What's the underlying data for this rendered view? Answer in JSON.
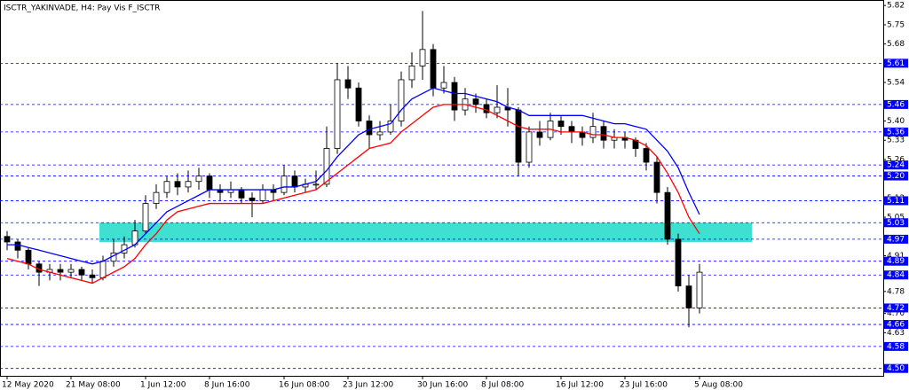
{
  "chart_data": {
    "type": "candlestick",
    "title": "ISCTR_YAKINVADE, H4:  Pay Vis F_ISCTR",
    "categories": [
      "12 May 2020",
      null,
      null,
      null,
      null,
      null,
      "21 May 08:00",
      null,
      null,
      null,
      null,
      null,
      null,
      "1 Jun 12:00",
      null,
      null,
      null,
      null,
      null,
      "8 Jun 16:00",
      null,
      null,
      null,
      null,
      null,
      null,
      "16 Jun 08:00",
      null,
      null,
      null,
      null,
      null,
      "23 Jun 12:00",
      null,
      null,
      null,
      null,
      null,
      null,
      "30 Jun 16:00",
      null,
      null,
      null,
      null,
      null,
      "8 Jul 08:00",
      null,
      null,
      null,
      null,
      null,
      null,
      "16 Jul 12:00",
      null,
      null,
      null,
      null,
      null,
      "23 Jul 16:00",
      null,
      null,
      null,
      null,
      null,
      null,
      "5 Aug 08:00"
    ],
    "candles": [
      [
        4.98,
        5.0,
        4.93,
        4.96
      ],
      [
        4.96,
        4.97,
        4.9,
        4.93
      ],
      [
        4.93,
        4.94,
        4.86,
        4.88
      ],
      [
        4.88,
        4.89,
        4.8,
        4.85
      ],
      [
        4.85,
        4.88,
        4.82,
        4.86
      ],
      [
        4.86,
        4.88,
        4.82,
        4.85
      ],
      [
        4.85,
        4.88,
        4.83,
        4.86
      ],
      [
        4.86,
        4.87,
        4.82,
        4.84
      ],
      [
        4.84,
        4.86,
        4.81,
        4.83
      ],
      [
        4.83,
        4.91,
        4.82,
        4.89
      ],
      [
        4.89,
        4.97,
        4.87,
        4.92
      ],
      [
        4.92,
        4.98,
        4.9,
        4.95
      ],
      [
        4.95,
        5.04,
        4.94,
        5.0
      ],
      [
        5.0,
        5.13,
        4.99,
        5.1
      ],
      [
        5.1,
        5.17,
        5.08,
        5.14
      ],
      [
        5.14,
        5.2,
        5.12,
        5.18
      ],
      [
        5.18,
        5.21,
        5.13,
        5.16
      ],
      [
        5.16,
        5.22,
        5.14,
        5.18
      ],
      [
        5.18,
        5.23,
        5.15,
        5.2
      ],
      [
        5.2,
        5.21,
        5.12,
        5.15
      ],
      [
        5.15,
        5.17,
        5.11,
        5.14
      ],
      [
        5.14,
        5.18,
        5.12,
        5.15
      ],
      [
        5.15,
        5.16,
        5.1,
        5.12
      ],
      [
        5.12,
        5.14,
        5.05,
        5.11
      ],
      [
        5.11,
        5.17,
        5.1,
        5.15
      ],
      [
        5.15,
        5.17,
        5.11,
        5.14
      ],
      [
        5.14,
        5.24,
        5.13,
        5.2
      ],
      [
        5.2,
        5.22,
        5.14,
        5.16
      ],
      [
        5.16,
        5.19,
        5.14,
        5.17
      ],
      [
        5.17,
        5.22,
        5.15,
        5.17
      ],
      [
        5.17,
        5.38,
        5.16,
        5.3
      ],
      [
        5.3,
        5.61,
        5.28,
        5.55
      ],
      [
        5.55,
        5.6,
        5.48,
        5.52
      ],
      [
        5.52,
        5.54,
        5.38,
        5.4
      ],
      [
        5.4,
        5.42,
        5.3,
        5.35
      ],
      [
        5.35,
        5.4,
        5.33,
        5.36
      ],
      [
        5.36,
        5.46,
        5.35,
        5.4
      ],
      [
        5.4,
        5.58,
        5.38,
        5.55
      ],
      [
        5.55,
        5.65,
        5.52,
        5.6
      ],
      [
        5.6,
        5.8,
        5.55,
        5.66
      ],
      [
        5.66,
        5.68,
        5.49,
        5.52
      ],
      [
        5.52,
        5.6,
        5.5,
        5.54
      ],
      [
        5.54,
        5.56,
        5.4,
        5.44
      ],
      [
        5.44,
        5.52,
        5.42,
        5.48
      ],
      [
        5.48,
        5.5,
        5.43,
        5.46
      ],
      [
        5.46,
        5.48,
        5.41,
        5.43
      ],
      [
        5.43,
        5.53,
        5.41,
        5.45
      ],
      [
        5.45,
        5.52,
        5.38,
        5.44
      ],
      [
        5.44,
        5.45,
        5.2,
        5.25
      ],
      [
        5.25,
        5.38,
        5.23,
        5.36
      ],
      [
        5.36,
        5.4,
        5.31,
        5.34
      ],
      [
        5.34,
        5.43,
        5.33,
        5.4
      ],
      [
        5.4,
        5.42,
        5.35,
        5.38
      ],
      [
        5.38,
        5.4,
        5.32,
        5.36
      ],
      [
        5.36,
        5.38,
        5.31,
        5.34
      ],
      [
        5.34,
        5.43,
        5.32,
        5.38
      ],
      [
        5.38,
        5.4,
        5.3,
        5.33
      ],
      [
        5.33,
        5.37,
        5.3,
        5.34
      ],
      [
        5.34,
        5.36,
        5.3,
        5.33
      ],
      [
        5.33,
        5.34,
        5.27,
        5.3
      ],
      [
        5.3,
        5.32,
        5.22,
        5.25
      ],
      [
        5.25,
        5.27,
        5.1,
        5.14
      ],
      [
        5.14,
        5.16,
        4.95,
        4.97
      ],
      [
        4.97,
        4.99,
        4.78,
        4.8
      ],
      [
        4.8,
        4.84,
        4.65,
        4.72
      ],
      [
        4.72,
        4.88,
        4.7,
        4.85
      ]
    ],
    "up_color": "#ffffff",
    "down_color": "#000000",
    "series": [
      {
        "color": "#0000ff",
        "values": [
          4.95,
          4.95,
          4.94,
          4.93,
          4.92,
          4.91,
          4.9,
          4.89,
          4.88,
          4.89,
          4.91,
          4.93,
          4.95,
          4.99,
          5.03,
          5.07,
          5.09,
          5.11,
          5.13,
          5.15,
          5.15,
          5.15,
          5.15,
          5.15,
          5.15,
          5.15,
          5.16,
          5.16,
          5.17,
          5.18,
          5.22,
          5.27,
          5.31,
          5.35,
          5.37,
          5.38,
          5.39,
          5.44,
          5.48,
          5.5,
          5.52,
          5.51,
          5.5,
          5.5,
          5.49,
          5.48,
          5.47,
          5.45,
          5.44,
          5.42,
          5.42,
          5.42,
          5.42,
          5.42,
          5.42,
          5.41,
          5.4,
          5.39,
          5.39,
          5.38,
          5.37,
          5.33,
          5.29,
          5.23,
          5.14,
          5.06
        ]
      },
      {
        "color": "#ff0000",
        "values": [
          4.9,
          4.89,
          4.88,
          4.86,
          4.85,
          4.84,
          4.83,
          4.82,
          4.81,
          4.83,
          4.85,
          4.87,
          4.9,
          4.95,
          4.99,
          5.04,
          5.07,
          5.08,
          5.09,
          5.1,
          5.1,
          5.1,
          5.1,
          5.1,
          5.1,
          5.11,
          5.12,
          5.13,
          5.14,
          5.15,
          5.18,
          5.21,
          5.24,
          5.27,
          5.3,
          5.31,
          5.32,
          5.36,
          5.39,
          5.42,
          5.45,
          5.46,
          5.46,
          5.46,
          5.45,
          5.44,
          5.42,
          5.4,
          5.38,
          5.37,
          5.37,
          5.37,
          5.36,
          5.36,
          5.36,
          5.35,
          5.35,
          5.34,
          5.34,
          5.33,
          5.31,
          5.27,
          5.21,
          5.14,
          5.05,
          4.99
        ]
      }
    ],
    "zone": {
      "low": 4.96,
      "high": 5.03,
      "color": "#40e0d0"
    },
    "ylim": [
      4.47,
      5.84
    ],
    "yticks": [
      5.82,
      5.75,
      5.68,
      5.54,
      {
        "value": 5.4,
        "label": "5.40"
      },
      5.33,
      5.26,
      5.12,
      5.05,
      4.91,
      4.78,
      {
        "value": 4.7,
        "label": "4.70"
      },
      4.63
    ],
    "levels": [
      5.61,
      5.46,
      5.36,
      5.24,
      {
        "value": 5.2,
        "label": "5.20"
      },
      5.11,
      5.03,
      4.97,
      4.89,
      4.84,
      4.72,
      4.66,
      4.58,
      {
        "value": 4.5,
        "label": "4.50"
      }
    ],
    "level_color": "#0000ff"
  }
}
